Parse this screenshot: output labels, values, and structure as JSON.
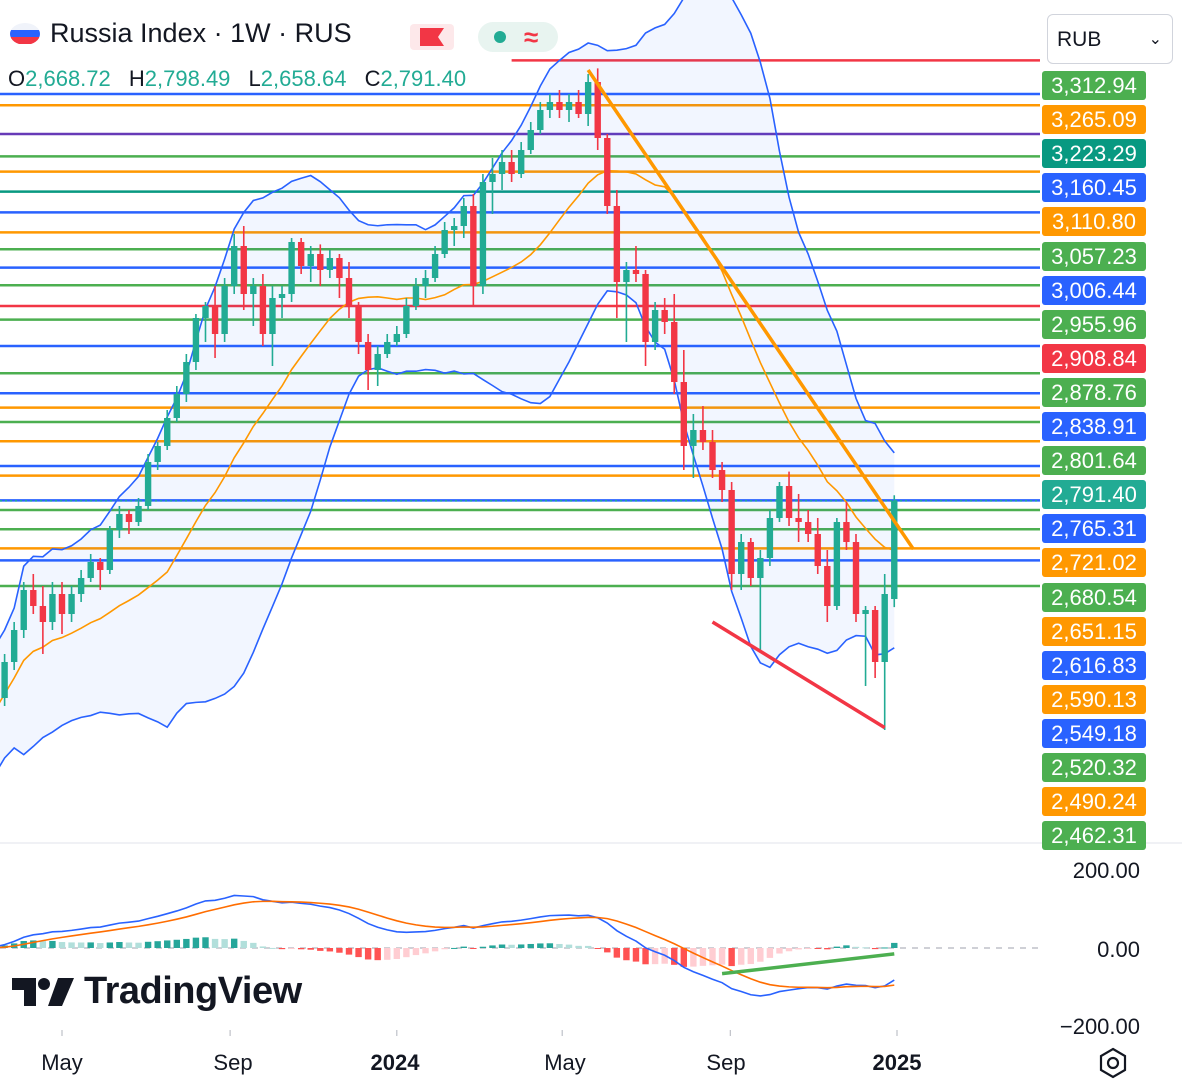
{
  "header": {
    "title": "Russia Index · 1W · RUS",
    "ohlc": [
      {
        "key": "O",
        "value": "2,668.72"
      },
      {
        "key": "H",
        "value": "2,798.49"
      },
      {
        "key": "L",
        "value": "2,658.64"
      },
      {
        "key": "C",
        "value": "2,791.40"
      }
    ],
    "currency": "RUB"
  },
  "colors": {
    "up": "#22ab94",
    "down": "#f23645",
    "blue": "#2962ff",
    "orange": "#ff9800",
    "green": "#4caf50",
    "red": "#f23645",
    "purple": "#673ab7",
    "teal": "#089981",
    "bands": "#2962ff"
  },
  "icons": [
    "russia-flag-icon",
    "red-flag-icon",
    "market-open-dot-icon",
    "wave-icon",
    "chevron-down-icon",
    "tradingview-logo-icon",
    "settings-icon"
  ],
  "price_labels": [
    {
      "value": "3,312.94",
      "color": "#4caf50"
    },
    {
      "value": "3,265.09",
      "color": "#ff9800"
    },
    {
      "value": "3,223.29",
      "color": "#089981"
    },
    {
      "value": "3,160.45",
      "color": "#2962ff"
    },
    {
      "value": "3,110.80",
      "color": "#ff9800"
    },
    {
      "value": "3,057.23",
      "color": "#4caf50"
    },
    {
      "value": "3,006.44",
      "color": "#2962ff"
    },
    {
      "value": "2,955.96",
      "color": "#4caf50"
    },
    {
      "value": "2,908.84",
      "color": "#f23645"
    },
    {
      "value": "2,878.76",
      "color": "#4caf50"
    },
    {
      "value": "2,838.91",
      "color": "#2962ff"
    },
    {
      "value": "2,801.64",
      "color": "#4caf50"
    },
    {
      "value": "2,791.40",
      "color": "#22ab94"
    },
    {
      "value": "2,765.31",
      "color": "#2962ff"
    },
    {
      "value": "2,721.02",
      "color": "#ff9800"
    },
    {
      "value": "2,680.54",
      "color": "#4caf50"
    },
    {
      "value": "2,651.15",
      "color": "#ff9800"
    },
    {
      "value": "2,616.83",
      "color": "#2962ff"
    },
    {
      "value": "2,590.13",
      "color": "#ff9800"
    },
    {
      "value": "2,549.18",
      "color": "#2962ff"
    },
    {
      "value": "2,520.32",
      "color": "#4caf50"
    },
    {
      "value": "2,490.24",
      "color": "#ff9800"
    },
    {
      "value": "2,462.31",
      "color": "#4caf50"
    }
  ],
  "horizontal_levels": [
    {
      "price": 3342,
      "color": "#f23645",
      "start": "2024-03-25"
    },
    {
      "price": 3300,
      "color": "#2962ff"
    },
    {
      "price": 3286,
      "color": "#ff9800"
    },
    {
      "price": 3250,
      "color": "#673ab7"
    },
    {
      "price": 3222,
      "color": "#4caf50"
    },
    {
      "price": 3203,
      "color": "#ff9800"
    },
    {
      "price": 3178,
      "color": "#089981"
    },
    {
      "price": 3152,
      "color": "#2962ff"
    },
    {
      "price": 3127,
      "color": "#ff9800"
    },
    {
      "price": 3106,
      "color": "#4caf50"
    },
    {
      "price": 3083,
      "color": "#2962ff"
    },
    {
      "price": 3061,
      "color": "#4caf50"
    },
    {
      "price": 3035,
      "color": "#f23645"
    },
    {
      "price": 3018,
      "color": "#4caf50"
    },
    {
      "price": 2985,
      "color": "#2962ff"
    },
    {
      "price": 2951,
      "color": "#4caf50"
    },
    {
      "price": 2926,
      "color": "#2962ff"
    },
    {
      "price": 2908,
      "color": "#ff9800"
    },
    {
      "price": 2890,
      "color": "#4caf50"
    },
    {
      "price": 2866,
      "color": "#ff9800"
    },
    {
      "price": 2835,
      "color": "#2962ff"
    },
    {
      "price": 2823,
      "color": "#ff9800"
    },
    {
      "price": 2792,
      "color": "#2962ff"
    },
    {
      "price": 2780,
      "color": "#4caf50"
    },
    {
      "price": 2756,
      "color": "#4caf50"
    },
    {
      "price": 2732,
      "color": "#ff9800"
    },
    {
      "price": 2717,
      "color": "#2962ff"
    },
    {
      "price": 2685,
      "color": "#4caf50"
    }
  ],
  "chart_data": {
    "type": "candlestick",
    "title": "Russia Index · 1W · RUS",
    "x_ticks": [
      "May",
      "Sep",
      "2024",
      "May",
      "Sep",
      "2025"
    ],
    "x_tick_dates": [
      "2023-05-01",
      "2023-09-01",
      "2024-01-01",
      "2024-05-01",
      "2024-09-01",
      "2025-01-01"
    ],
    "yrange": [
      2500,
      3359
    ],
    "candles": [
      {
        "t": "2023-03-06",
        "o": 2450,
        "h": 2530,
        "l": 2420,
        "c": 2515
      },
      {
        "t": "2023-03-13",
        "o": 2515,
        "h": 2560,
        "l": 2500,
        "c": 2545
      },
      {
        "t": "2023-03-20",
        "o": 2545,
        "h": 2600,
        "l": 2535,
        "c": 2590
      },
      {
        "t": "2023-03-27",
        "o": 2590,
        "h": 2640,
        "l": 2580,
        "c": 2630
      },
      {
        "t": "2023-04-03",
        "o": 2630,
        "h": 2690,
        "l": 2620,
        "c": 2680
      },
      {
        "t": "2023-04-10",
        "o": 2680,
        "h": 2700,
        "l": 2650,
        "c": 2660
      },
      {
        "t": "2023-04-17",
        "o": 2660,
        "h": 2685,
        "l": 2600,
        "c": 2640
      },
      {
        "t": "2023-04-24",
        "o": 2640,
        "h": 2690,
        "l": 2630,
        "c": 2675
      },
      {
        "t": "2023-05-01",
        "o": 2675,
        "h": 2690,
        "l": 2625,
        "c": 2650
      },
      {
        "t": "2023-05-08",
        "o": 2650,
        "h": 2685,
        "l": 2640,
        "c": 2675
      },
      {
        "t": "2023-05-15",
        "o": 2675,
        "h": 2705,
        "l": 2665,
        "c": 2695
      },
      {
        "t": "2023-05-22",
        "o": 2695,
        "h": 2725,
        "l": 2690,
        "c": 2715
      },
      {
        "t": "2023-05-29",
        "o": 2715,
        "h": 2720,
        "l": 2680,
        "c": 2705
      },
      {
        "t": "2023-06-05",
        "o": 2705,
        "h": 2760,
        "l": 2700,
        "c": 2755
      },
      {
        "t": "2023-06-12",
        "o": 2755,
        "h": 2785,
        "l": 2745,
        "c": 2775
      },
      {
        "t": "2023-06-19",
        "o": 2775,
        "h": 2780,
        "l": 2750,
        "c": 2765
      },
      {
        "t": "2023-06-26",
        "o": 2765,
        "h": 2795,
        "l": 2760,
        "c": 2785
      },
      {
        "t": "2023-07-03",
        "o": 2785,
        "h": 2850,
        "l": 2780,
        "c": 2840
      },
      {
        "t": "2023-07-10",
        "o": 2840,
        "h": 2865,
        "l": 2830,
        "c": 2860
      },
      {
        "t": "2023-07-17",
        "o": 2860,
        "h": 2905,
        "l": 2855,
        "c": 2895
      },
      {
        "t": "2023-07-24",
        "o": 2895,
        "h": 2935,
        "l": 2890,
        "c": 2925
      },
      {
        "t": "2023-07-31",
        "o": 2925,
        "h": 2975,
        "l": 2915,
        "c": 2965
      },
      {
        "t": "2023-08-07",
        "o": 2965,
        "h": 3025,
        "l": 2955,
        "c": 3020
      },
      {
        "t": "2023-08-14",
        "o": 3020,
        "h": 3040,
        "l": 2990,
        "c": 3035
      },
      {
        "t": "2023-08-21",
        "o": 3035,
        "h": 3060,
        "l": 2970,
        "c": 3000
      },
      {
        "t": "2023-08-28",
        "o": 3000,
        "h": 3070,
        "l": 2990,
        "c": 3060
      },
      {
        "t": "2023-09-04",
        "o": 3060,
        "h": 3125,
        "l": 3050,
        "c": 3110
      },
      {
        "t": "2023-09-11",
        "o": 3110,
        "h": 3135,
        "l": 3030,
        "c": 3050
      },
      {
        "t": "2023-09-18",
        "o": 3050,
        "h": 3070,
        "l": 3010,
        "c": 3060
      },
      {
        "t": "2023-09-25",
        "o": 3060,
        "h": 3075,
        "l": 2985,
        "c": 3000
      },
      {
        "t": "2023-10-02",
        "o": 3000,
        "h": 3060,
        "l": 2960,
        "c": 3045
      },
      {
        "t": "2023-10-09",
        "o": 3045,
        "h": 3060,
        "l": 3020,
        "c": 3050
      },
      {
        "t": "2023-10-16",
        "o": 3050,
        "h": 3120,
        "l": 3040,
        "c": 3115
      },
      {
        "t": "2023-10-23",
        "o": 3115,
        "h": 3120,
        "l": 3075,
        "c": 3085
      },
      {
        "t": "2023-10-30",
        "o": 3085,
        "h": 3110,
        "l": 3065,
        "c": 3100
      },
      {
        "t": "2023-11-06",
        "o": 3100,
        "h": 3112,
        "l": 3060,
        "c": 3080
      },
      {
        "t": "2023-11-13",
        "o": 3080,
        "h": 3105,
        "l": 3070,
        "c": 3095
      },
      {
        "t": "2023-11-20",
        "o": 3095,
        "h": 3100,
        "l": 3045,
        "c": 3070
      },
      {
        "t": "2023-11-27",
        "o": 3070,
        "h": 3090,
        "l": 3020,
        "c": 3035
      },
      {
        "t": "2023-12-04",
        "o": 3035,
        "h": 3040,
        "l": 2975,
        "c": 2990
      },
      {
        "t": "2023-12-11",
        "o": 2990,
        "h": 3000,
        "l": 2930,
        "c": 2955
      },
      {
        "t": "2023-12-18",
        "o": 2955,
        "h": 2985,
        "l": 2935,
        "c": 2975
      },
      {
        "t": "2023-12-25",
        "o": 2975,
        "h": 3000,
        "l": 2970,
        "c": 2990
      },
      {
        "t": "2024-01-01",
        "o": 2990,
        "h": 3010,
        "l": 2985,
        "c": 3000
      },
      {
        "t": "2024-01-08",
        "o": 3000,
        "h": 3045,
        "l": 2995,
        "c": 3035
      },
      {
        "t": "2024-01-15",
        "o": 3035,
        "h": 3070,
        "l": 3030,
        "c": 3060
      },
      {
        "t": "2024-01-22",
        "o": 3060,
        "h": 3080,
        "l": 3045,
        "c": 3070
      },
      {
        "t": "2024-01-29",
        "o": 3070,
        "h": 3110,
        "l": 3065,
        "c": 3100
      },
      {
        "t": "2024-02-05",
        "o": 3100,
        "h": 3140,
        "l": 3095,
        "c": 3130
      },
      {
        "t": "2024-02-12",
        "o": 3130,
        "h": 3145,
        "l": 3110,
        "c": 3135
      },
      {
        "t": "2024-02-19",
        "o": 3135,
        "h": 3170,
        "l": 3120,
        "c": 3160
      },
      {
        "t": "2024-02-26",
        "o": 3160,
        "h": 3175,
        "l": 3035,
        "c": 3060
      },
      {
        "t": "2024-03-04",
        "o": 3060,
        "h": 3200,
        "l": 3050,
        "c": 3190
      },
      {
        "t": "2024-03-11",
        "o": 3190,
        "h": 3220,
        "l": 3150,
        "c": 3200
      },
      {
        "t": "2024-03-18",
        "o": 3200,
        "h": 3230,
        "l": 3180,
        "c": 3215
      },
      {
        "t": "2024-03-25",
        "o": 3215,
        "h": 3230,
        "l": 3190,
        "c": 3200
      },
      {
        "t": "2024-04-01",
        "o": 3200,
        "h": 3240,
        "l": 3195,
        "c": 3230
      },
      {
        "t": "2024-04-08",
        "o": 3230,
        "h": 3265,
        "l": 3225,
        "c": 3255
      },
      {
        "t": "2024-04-15",
        "o": 3255,
        "h": 3290,
        "l": 3250,
        "c": 3280
      },
      {
        "t": "2024-04-22",
        "o": 3280,
        "h": 3300,
        "l": 3270,
        "c": 3290
      },
      {
        "t": "2024-04-29",
        "o": 3290,
        "h": 3305,
        "l": 3270,
        "c": 3280
      },
      {
        "t": "2024-05-06",
        "o": 3280,
        "h": 3300,
        "l": 3265,
        "c": 3290
      },
      {
        "t": "2024-05-13",
        "o": 3290,
        "h": 3305,
        "l": 3270,
        "c": 3275
      },
      {
        "t": "2024-05-20",
        "o": 3275,
        "h": 3325,
        "l": 3260,
        "c": 3315
      },
      {
        "t": "2024-05-27",
        "o": 3315,
        "h": 3332,
        "l": 3230,
        "c": 3245
      },
      {
        "t": "2024-06-03",
        "o": 3245,
        "h": 3250,
        "l": 3150,
        "c": 3160
      },
      {
        "t": "2024-06-10",
        "o": 3160,
        "h": 3180,
        "l": 3020,
        "c": 3065
      },
      {
        "t": "2024-06-17",
        "o": 3065,
        "h": 3090,
        "l": 2990,
        "c": 3080
      },
      {
        "t": "2024-06-24",
        "o": 3080,
        "h": 3110,
        "l": 3065,
        "c": 3075
      },
      {
        "t": "2024-07-01",
        "o": 3075,
        "h": 3080,
        "l": 2960,
        "c": 2990
      },
      {
        "t": "2024-07-08",
        "o": 2990,
        "h": 3040,
        "l": 2980,
        "c": 3030
      },
      {
        "t": "2024-07-15",
        "o": 3030,
        "h": 3045,
        "l": 3000,
        "c": 3015
      },
      {
        "t": "2024-07-22",
        "o": 3015,
        "h": 3050,
        "l": 2925,
        "c": 2940
      },
      {
        "t": "2024-07-29",
        "o": 2940,
        "h": 2980,
        "l": 2830,
        "c": 2860
      },
      {
        "t": "2024-08-05",
        "o": 2860,
        "h": 2900,
        "l": 2820,
        "c": 2880
      },
      {
        "t": "2024-08-12",
        "o": 2880,
        "h": 2910,
        "l": 2855,
        "c": 2865
      },
      {
        "t": "2024-08-19",
        "o": 2865,
        "h": 2880,
        "l": 2820,
        "c": 2830
      },
      {
        "t": "2024-08-26",
        "o": 2830,
        "h": 2840,
        "l": 2790,
        "c": 2805
      },
      {
        "t": "2024-09-02",
        "o": 2805,
        "h": 2815,
        "l": 2680,
        "c": 2700
      },
      {
        "t": "2024-09-09",
        "o": 2700,
        "h": 2750,
        "l": 2680,
        "c": 2740
      },
      {
        "t": "2024-09-16",
        "o": 2740,
        "h": 2745,
        "l": 2685,
        "c": 2695
      },
      {
        "t": "2024-09-23",
        "o": 2695,
        "h": 2730,
        "l": 2605,
        "c": 2720
      },
      {
        "t": "2024-09-30",
        "o": 2720,
        "h": 2780,
        "l": 2710,
        "c": 2770
      },
      {
        "t": "2024-10-07",
        "o": 2770,
        "h": 2815,
        "l": 2765,
        "c": 2810
      },
      {
        "t": "2024-10-14",
        "o": 2810,
        "h": 2828,
        "l": 2760,
        "c": 2770
      },
      {
        "t": "2024-10-21",
        "o": 2770,
        "h": 2800,
        "l": 2740,
        "c": 2765
      },
      {
        "t": "2024-10-28",
        "o": 2765,
        "h": 2780,
        "l": 2740,
        "c": 2750
      },
      {
        "t": "2024-11-04",
        "o": 2750,
        "h": 2770,
        "l": 2700,
        "c": 2710
      },
      {
        "t": "2024-11-11",
        "o": 2710,
        "h": 2730,
        "l": 2640,
        "c": 2660
      },
      {
        "t": "2024-11-18",
        "o": 2660,
        "h": 2770,
        "l": 2655,
        "c": 2765
      },
      {
        "t": "2024-11-25",
        "o": 2765,
        "h": 2790,
        "l": 2730,
        "c": 2740
      },
      {
        "t": "2024-12-02",
        "o": 2740,
        "h": 2750,
        "l": 2640,
        "c": 2650
      },
      {
        "t": "2024-12-09",
        "o": 2650,
        "h": 2660,
        "l": 2560,
        "c": 2655
      },
      {
        "t": "2024-12-16",
        "o": 2655,
        "h": 2660,
        "l": 2570,
        "c": 2590
      },
      {
        "t": "2024-12-23",
        "o": 2590,
        "h": 2700,
        "l": 2505,
        "c": 2675
      },
      {
        "t": "2024-12-30",
        "o": 2668.72,
        "h": 2798.49,
        "l": 2658.64,
        "c": 2791.4
      }
    ],
    "trendlines": [
      {
        "from": [
          "2024-05-20",
          3330
        ],
        "to": [
          "2025-01-13",
          2731
        ],
        "color": "#ff9800"
      },
      {
        "from": [
          "2024-08-19",
          2640
        ],
        "to": [
          "2024-12-23",
          2508
        ],
        "color": "#f23645"
      }
    ],
    "indicators": [
      "Bollinger Bands",
      "Moving average"
    ],
    "oscillator": {
      "axis_ticks": [
        "200.00",
        "0.00",
        "−200.00"
      ],
      "yrange": [
        -225,
        225
      ],
      "zero_line": 0
    }
  }
}
